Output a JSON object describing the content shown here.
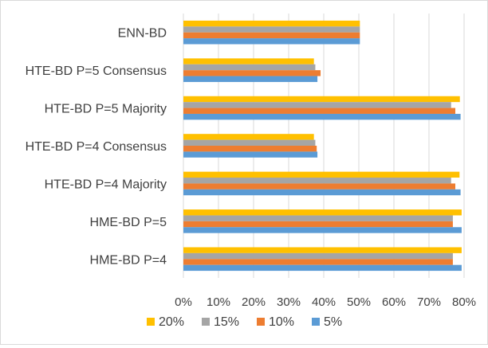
{
  "chart_data": {
    "type": "bar",
    "orientation": "horizontal",
    "title": "",
    "xlabel": "",
    "ylabel": "",
    "categories": [
      "ENN-BD",
      "HTE-BD P=5 Consensus",
      "HTE-BD P=5 Majority",
      "HTE-BD P=4 Consensus",
      "HTE-BD P=4 Majority",
      "HME-BD P=5",
      "HME-BD P=4"
    ],
    "series": [
      {
        "name": "20%",
        "color": "#FFC000",
        "values": [
          50.3,
          37.2,
          78.8,
          37.2,
          78.7,
          79.3,
          79.3
        ]
      },
      {
        "name": "15%",
        "color": "#A5A5A5",
        "values": [
          50.3,
          37.6,
          76.3,
          37.6,
          76.3,
          76.8,
          76.8
        ]
      },
      {
        "name": "10%",
        "color": "#ED7D31",
        "values": [
          50.3,
          39.1,
          77.5,
          38.0,
          77.5,
          76.8,
          76.8
        ]
      },
      {
        "name": "5%",
        "color": "#5B9BD5",
        "values": [
          50.3,
          38.2,
          79.0,
          38.2,
          79.0,
          79.3,
          79.3
        ]
      }
    ],
    "xlim": [
      0,
      80
    ],
    "xticks": [
      0,
      10,
      20,
      30,
      40,
      50,
      60,
      70,
      80
    ],
    "xtick_labels": [
      "0%",
      "10%",
      "20%",
      "30%",
      "40%",
      "50%",
      "60%",
      "70%",
      "80%"
    ],
    "grid": true,
    "legend_position": "bottom"
  }
}
